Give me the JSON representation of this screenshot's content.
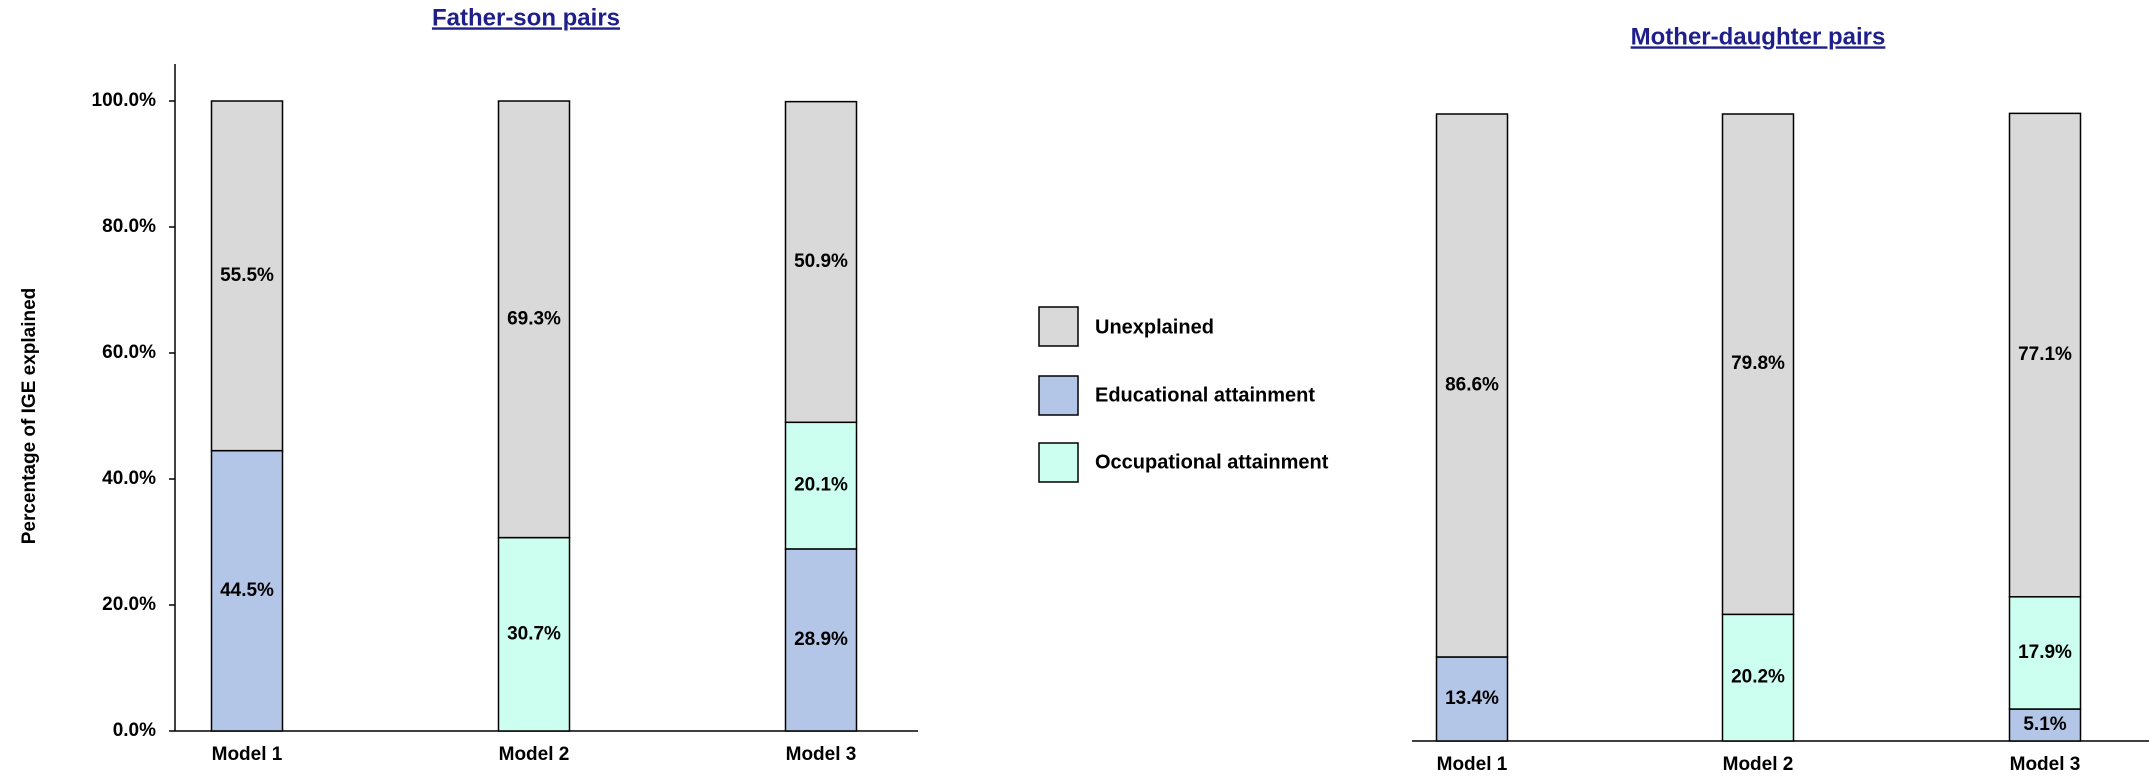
{
  "chart_data": [
    {
      "type": "bar",
      "stacked": true,
      "title": "Father-son pairs",
      "y_label": "Percentage of IGE explained",
      "categories": [
        "Model 1",
        "Model 2",
        "Model 3"
      ],
      "series": [
        {
          "name": "Educational attainment",
          "color": "#b4c6e7",
          "values": [
            44.5,
            null,
            28.9
          ],
          "value_labels": [
            "44.5%",
            null,
            "28.9%"
          ]
        },
        {
          "name": "Occupational attainment",
          "color": "#ccfff0",
          "values": [
            null,
            30.7,
            20.1
          ],
          "value_labels": [
            null,
            "30.7%",
            "20.1%"
          ]
        },
        {
          "name": "Unexplained",
          "color": "#d9d9d9",
          "values": [
            55.5,
            69.3,
            50.9
          ],
          "value_labels": [
            "55.5%",
            "69.3%",
            "50.9%"
          ]
        }
      ],
      "ylim": [
        0,
        100
      ],
      "yticks": [
        {
          "value": 0,
          "label": "0.0%"
        },
        {
          "value": 20,
          "label": "20.0%"
        },
        {
          "value": 40,
          "label": "40.0%"
        },
        {
          "value": 60,
          "label": "60.0%"
        },
        {
          "value": 80,
          "label": "80.0%"
        },
        {
          "value": 100,
          "label": "100.0%"
        }
      ]
    },
    {
      "type": "bar",
      "stacked": true,
      "title": "Mother-daughter pairs",
      "categories": [
        "Model 1",
        "Model 2",
        "Model 3"
      ],
      "series": [
        {
          "color": "#b4c6e7",
          "values": [
            13.4,
            null,
            5.1
          ],
          "value_labels": [
            "13.4%",
            null,
            "5.1%"
          ]
        },
        {
          "color": "#ccfff0",
          "values": [
            null,
            20.2,
            17.9
          ],
          "value_labels": [
            null,
            "20.2%",
            "17.9%"
          ]
        },
        {
          "color": "#d9d9d9",
          "values": [
            86.6,
            79.8,
            77.1
          ],
          "value_labels": [
            "86.6%",
            "79.8%",
            "77.1%"
          ]
        }
      ],
      "ylim": [
        0,
        100
      ]
    }
  ]
}
